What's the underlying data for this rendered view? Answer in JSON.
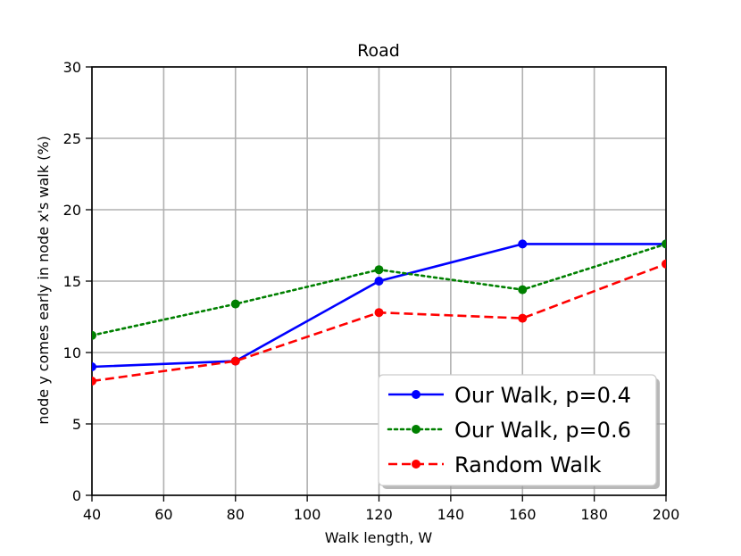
{
  "chart_data": {
    "type": "line",
    "title": "Road",
    "xlabel": "Walk length, W",
    "ylabel": "node y comes early in node x's walk (%)",
    "xlim": [
      40,
      200
    ],
    "ylim": [
      0,
      30
    ],
    "xticks": [
      40,
      60,
      80,
      100,
      120,
      140,
      160,
      180,
      200
    ],
    "yticks": [
      0,
      5,
      10,
      15,
      20,
      25,
      30
    ],
    "grid": true,
    "legend_position": "lower-right",
    "series": [
      {
        "name": "Our Walk, p=0.4",
        "color": "#0000ff",
        "style": "solid",
        "marker": "circle",
        "x": [
          40,
          80,
          120,
          160,
          200
        ],
        "y": [
          9.0,
          9.4,
          15.0,
          17.6,
          17.6
        ]
      },
      {
        "name": "Our Walk, p=0.6",
        "color": "#008000",
        "style": "dotted",
        "marker": "circle",
        "x": [
          40,
          80,
          120,
          160,
          200
        ],
        "y": [
          11.2,
          13.4,
          15.8,
          14.4,
          17.6
        ]
      },
      {
        "name": "Random Walk",
        "color": "#ff0000",
        "style": "dashed",
        "marker": "circle",
        "x": [
          40,
          80,
          120,
          160,
          200
        ],
        "y": [
          8.0,
          9.4,
          12.8,
          12.4,
          16.2
        ]
      }
    ]
  }
}
